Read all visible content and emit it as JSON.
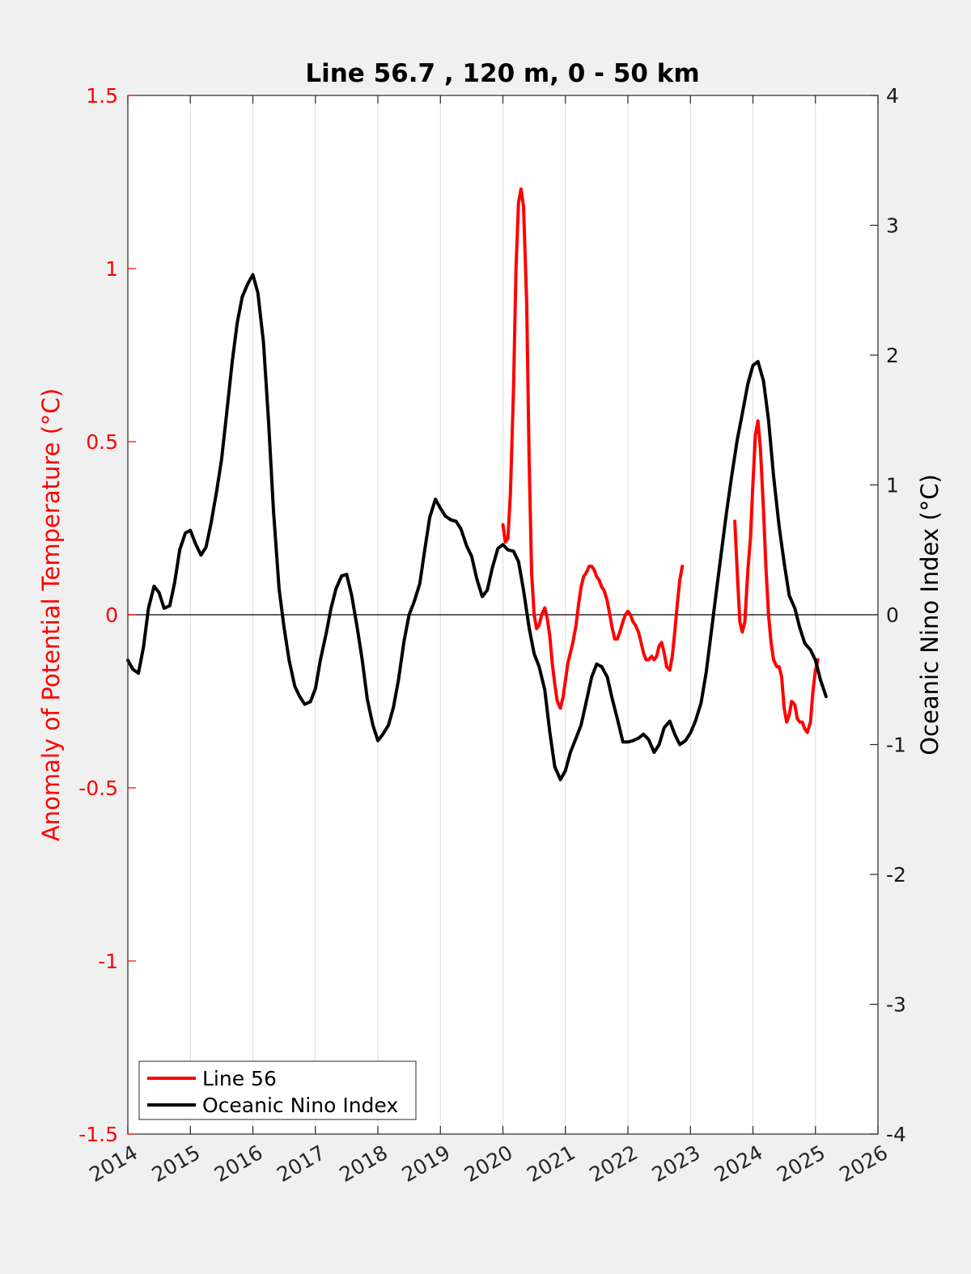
{
  "chart_data": {
    "type": "line",
    "title": "Line 56.7 , 120 m, 0 - 50 km",
    "xlabel": "",
    "ylabel_left": "Anomaly of Potential Temperature (°C)",
    "ylabel_right": "Oceanic Nino Index (°C)",
    "xlim": [
      2014,
      2026
    ],
    "ylim_left": [
      -1.5,
      1.5
    ],
    "ylim_right": [
      -4,
      4
    ],
    "x_ticks": [
      "2014",
      "2015",
      "2016",
      "2017",
      "2018",
      "2019",
      "2020",
      "2021",
      "2022",
      "2023",
      "2024",
      "2025",
      "2026"
    ],
    "y_ticks_left": [
      "-1.5",
      "-1",
      "-0.5",
      "0",
      "0.5",
      "1",
      "1.5"
    ],
    "y_ticks_right": [
      "-4",
      "-3",
      "-2",
      "-1",
      "0",
      "1",
      "2",
      "3",
      "4"
    ],
    "grid": "vertical",
    "zero_line": true,
    "legend_position": "bottom-left",
    "legend": [
      "Line 56",
      "Oceanic Nino Index"
    ],
    "colors": {
      "line56": "#ff0000",
      "oni": "#000000",
      "left_axis": "#ff0000",
      "right_axis": "#000000",
      "background": "#f0f0f0",
      "plot_bg": "#ffffff"
    },
    "series": [
      {
        "name": "Line 56",
        "axis": "left",
        "segments": [
          [
            [
              2020.0,
              0.26
            ],
            [
              2020.04,
              0.21
            ],
            [
              2020.08,
              0.22
            ],
            [
              2020.12,
              0.35
            ],
            [
              2020.17,
              0.65
            ],
            [
              2020.21,
              1.0
            ],
            [
              2020.25,
              1.19
            ],
            [
              2020.29,
              1.23
            ],
            [
              2020.33,
              1.18
            ],
            [
              2020.38,
              0.9
            ],
            [
              2020.42,
              0.45
            ],
            [
              2020.46,
              0.12
            ],
            [
              2020.5,
              0.0
            ],
            [
              2020.54,
              -0.04
            ],
            [
              2020.58,
              -0.03
            ],
            [
              2020.62,
              0.0
            ],
            [
              2020.67,
              0.02
            ],
            [
              2020.71,
              -0.01
            ],
            [
              2020.75,
              -0.06
            ],
            [
              2020.79,
              -0.14
            ],
            [
              2020.83,
              -0.2
            ],
            [
              2020.87,
              -0.25
            ],
            [
              2020.92,
              -0.27
            ],
            [
              2020.96,
              -0.24
            ],
            [
              2021.0,
              -0.19
            ],
            [
              2021.04,
              -0.14
            ],
            [
              2021.08,
              -0.11
            ],
            [
              2021.12,
              -0.08
            ],
            [
              2021.17,
              -0.03
            ],
            [
              2021.21,
              0.03
            ],
            [
              2021.25,
              0.08
            ],
            [
              2021.29,
              0.11
            ],
            [
              2021.33,
              0.12
            ],
            [
              2021.38,
              0.14
            ],
            [
              2021.42,
              0.14
            ],
            [
              2021.46,
              0.13
            ],
            [
              2021.5,
              0.11
            ],
            [
              2021.54,
              0.1
            ],
            [
              2021.58,
              0.08
            ],
            [
              2021.62,
              0.07
            ],
            [
              2021.67,
              0.04
            ],
            [
              2021.71,
              0.0
            ],
            [
              2021.75,
              -0.04
            ],
            [
              2021.79,
              -0.07
            ],
            [
              2021.83,
              -0.07
            ],
            [
              2021.87,
              -0.05
            ],
            [
              2021.92,
              -0.02
            ],
            [
              2021.96,
              0.0
            ],
            [
              2022.0,
              0.01
            ],
            [
              2022.04,
              0.0
            ],
            [
              2022.08,
              -0.02
            ],
            [
              2022.12,
              -0.03
            ],
            [
              2022.17,
              -0.05
            ],
            [
              2022.21,
              -0.08
            ],
            [
              2022.25,
              -0.11
            ],
            [
              2022.29,
              -0.13
            ],
            [
              2022.33,
              -0.13
            ],
            [
              2022.38,
              -0.12
            ],
            [
              2022.42,
              -0.13
            ],
            [
              2022.46,
              -0.12
            ],
            [
              2022.5,
              -0.09
            ],
            [
              2022.54,
              -0.08
            ],
            [
              2022.58,
              -0.11
            ],
            [
              2022.62,
              -0.15
            ],
            [
              2022.67,
              -0.16
            ],
            [
              2022.71,
              -0.12
            ],
            [
              2022.75,
              -0.05
            ],
            [
              2022.79,
              0.03
            ],
            [
              2022.83,
              0.1
            ],
            [
              2022.87,
              0.14
            ]
          ],
          [
            [
              2023.71,
              0.27
            ],
            [
              2023.75,
              0.12
            ],
            [
              2023.79,
              -0.02
            ],
            [
              2023.83,
              -0.05
            ],
            [
              2023.87,
              -0.02
            ],
            [
              2023.92,
              0.13
            ],
            [
              2023.96,
              0.22
            ],
            [
              2024.0,
              0.38
            ],
            [
              2024.04,
              0.52
            ],
            [
              2024.08,
              0.56
            ],
            [
              2024.12,
              0.48
            ],
            [
              2024.17,
              0.3
            ],
            [
              2024.21,
              0.13
            ],
            [
              2024.25,
              0.0
            ],
            [
              2024.29,
              -0.08
            ],
            [
              2024.33,
              -0.13
            ],
            [
              2024.38,
              -0.15
            ],
            [
              2024.42,
              -0.15
            ],
            [
              2024.46,
              -0.18
            ],
            [
              2024.5,
              -0.27
            ],
            [
              2024.54,
              -0.31
            ],
            [
              2024.58,
              -0.29
            ],
            [
              2024.62,
              -0.25
            ],
            [
              2024.67,
              -0.26
            ],
            [
              2024.71,
              -0.3
            ],
            [
              2024.75,
              -0.31
            ],
            [
              2024.79,
              -0.31
            ],
            [
              2024.83,
              -0.33
            ],
            [
              2024.87,
              -0.34
            ],
            [
              2024.92,
              -0.31
            ],
            [
              2024.96,
              -0.22
            ],
            [
              2025.0,
              -0.16
            ],
            [
              2025.04,
              -0.13
            ]
          ]
        ]
      },
      {
        "name": "Oceanic Nino Index",
        "axis": "right",
        "segments": [
          [
            [
              2014.0,
              -0.35
            ],
            [
              2014.08,
              -0.42
            ],
            [
              2014.17,
              -0.45
            ],
            [
              2014.25,
              -0.25
            ],
            [
              2014.33,
              0.05
            ],
            [
              2014.42,
              0.22
            ],
            [
              2014.5,
              0.17
            ],
            [
              2014.58,
              0.05
            ],
            [
              2014.67,
              0.07
            ],
            [
              2014.75,
              0.25
            ],
            [
              2014.83,
              0.5
            ],
            [
              2014.92,
              0.63
            ],
            [
              2015.0,
              0.65
            ],
            [
              2015.08,
              0.55
            ],
            [
              2015.17,
              0.46
            ],
            [
              2015.25,
              0.52
            ],
            [
              2015.33,
              0.7
            ],
            [
              2015.42,
              0.95
            ],
            [
              2015.5,
              1.2
            ],
            [
              2015.58,
              1.55
            ],
            [
              2015.67,
              1.95
            ],
            [
              2015.75,
              2.25
            ],
            [
              2015.83,
              2.45
            ],
            [
              2015.92,
              2.55
            ],
            [
              2016.0,
              2.62
            ],
            [
              2016.08,
              2.48
            ],
            [
              2016.17,
              2.1
            ],
            [
              2016.25,
              1.5
            ],
            [
              2016.33,
              0.8
            ],
            [
              2016.42,
              0.2
            ],
            [
              2016.5,
              -0.1
            ],
            [
              2016.58,
              -0.35
            ],
            [
              2016.67,
              -0.55
            ],
            [
              2016.75,
              -0.63
            ],
            [
              2016.83,
              -0.69
            ],
            [
              2016.92,
              -0.67
            ],
            [
              2017.0,
              -0.57
            ],
            [
              2017.08,
              -0.35
            ],
            [
              2017.17,
              -0.15
            ],
            [
              2017.25,
              0.05
            ],
            [
              2017.33,
              0.2
            ],
            [
              2017.42,
              0.3
            ],
            [
              2017.5,
              0.31
            ],
            [
              2017.58,
              0.15
            ],
            [
              2017.67,
              -0.1
            ],
            [
              2017.75,
              -0.35
            ],
            [
              2017.83,
              -0.65
            ],
            [
              2017.92,
              -0.85
            ],
            [
              2018.0,
              -0.97
            ],
            [
              2018.08,
              -0.92
            ],
            [
              2018.17,
              -0.85
            ],
            [
              2018.25,
              -0.71
            ],
            [
              2018.33,
              -0.5
            ],
            [
              2018.42,
              -0.2
            ],
            [
              2018.5,
              0.0
            ],
            [
              2018.58,
              0.1
            ],
            [
              2018.67,
              0.24
            ],
            [
              2018.75,
              0.5
            ],
            [
              2018.83,
              0.75
            ],
            [
              2018.92,
              0.89
            ],
            [
              2019.0,
              0.82
            ],
            [
              2019.08,
              0.76
            ],
            [
              2019.17,
              0.73
            ],
            [
              2019.25,
              0.72
            ],
            [
              2019.33,
              0.66
            ],
            [
              2019.42,
              0.53
            ],
            [
              2019.5,
              0.45
            ],
            [
              2019.58,
              0.28
            ],
            [
              2019.67,
              0.14
            ],
            [
              2019.75,
              0.19
            ],
            [
              2019.83,
              0.36
            ],
            [
              2019.92,
              0.51
            ],
            [
              2020.0,
              0.54
            ],
            [
              2020.08,
              0.5
            ],
            [
              2020.17,
              0.49
            ],
            [
              2020.25,
              0.41
            ],
            [
              2020.33,
              0.19
            ],
            [
              2020.42,
              -0.1
            ],
            [
              2020.5,
              -0.3
            ],
            [
              2020.58,
              -0.4
            ],
            [
              2020.67,
              -0.58
            ],
            [
              2020.75,
              -0.9
            ],
            [
              2020.83,
              -1.17
            ],
            [
              2020.92,
              -1.27
            ],
            [
              2021.0,
              -1.2
            ],
            [
              2021.08,
              -1.06
            ],
            [
              2021.17,
              -0.95
            ],
            [
              2021.25,
              -0.85
            ],
            [
              2021.33,
              -0.68
            ],
            [
              2021.42,
              -0.48
            ],
            [
              2021.5,
              -0.38
            ],
            [
              2021.58,
              -0.4
            ],
            [
              2021.67,
              -0.48
            ],
            [
              2021.75,
              -0.65
            ],
            [
              2021.83,
              -0.8
            ],
            [
              2021.92,
              -0.98
            ],
            [
              2022.0,
              -0.98
            ],
            [
              2022.08,
              -0.97
            ],
            [
              2022.17,
              -0.95
            ],
            [
              2022.25,
              -0.92
            ],
            [
              2022.33,
              -0.96
            ],
            [
              2022.42,
              -1.06
            ],
            [
              2022.5,
              -1.0
            ],
            [
              2022.58,
              -0.87
            ],
            [
              2022.67,
              -0.82
            ],
            [
              2022.75,
              -0.92
            ],
            [
              2022.83,
              -1.0
            ],
            [
              2022.92,
              -0.97
            ],
            [
              2023.0,
              -0.91
            ],
            [
              2023.08,
              -0.82
            ],
            [
              2023.17,
              -0.68
            ],
            [
              2023.25,
              -0.45
            ],
            [
              2023.33,
              -0.15
            ],
            [
              2023.42,
              0.2
            ],
            [
              2023.5,
              0.5
            ],
            [
              2023.58,
              0.8
            ],
            [
              2023.67,
              1.1
            ],
            [
              2023.75,
              1.35
            ],
            [
              2023.83,
              1.55
            ],
            [
              2023.92,
              1.78
            ],
            [
              2024.0,
              1.92
            ],
            [
              2024.08,
              1.95
            ],
            [
              2024.17,
              1.8
            ],
            [
              2024.25,
              1.5
            ],
            [
              2024.33,
              1.07
            ],
            [
              2024.42,
              0.68
            ],
            [
              2024.5,
              0.4
            ],
            [
              2024.58,
              0.15
            ],
            [
              2024.67,
              0.05
            ],
            [
              2024.75,
              -0.1
            ],
            [
              2024.83,
              -0.22
            ],
            [
              2024.92,
              -0.27
            ],
            [
              2025.0,
              -0.35
            ],
            [
              2025.08,
              -0.5
            ],
            [
              2025.17,
              -0.63
            ]
          ]
        ]
      }
    ]
  }
}
